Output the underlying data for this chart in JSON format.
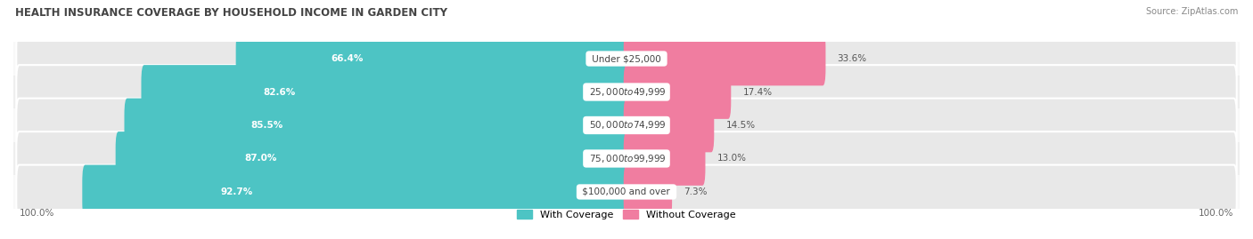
{
  "title": "HEALTH INSURANCE COVERAGE BY HOUSEHOLD INCOME IN GARDEN CITY",
  "source": "Source: ZipAtlas.com",
  "categories": [
    "Under $25,000",
    "$25,000 to $49,999",
    "$50,000 to $74,999",
    "$75,000 to $99,999",
    "$100,000 and over"
  ],
  "with_coverage": [
    66.4,
    82.6,
    85.5,
    87.0,
    92.7
  ],
  "without_coverage": [
    33.6,
    17.4,
    14.5,
    13.0,
    7.3
  ],
  "color_coverage": "#4DC4C4",
  "color_no_coverage": "#F07DA0",
  "track_color": "#E8E8E8",
  "row_bg_odd": "#F8F8F8",
  "row_bg_even": "#EEEEEE",
  "bar_height": 0.62,
  "figsize": [
    14.06,
    2.69
  ],
  "dpi": 100,
  "left_label": "100.0%",
  "right_label": "100.0%",
  "legend_coverage": "With Coverage",
  "legend_no_coverage": "Without Coverage",
  "xlim_left": -105,
  "xlim_right": 105
}
